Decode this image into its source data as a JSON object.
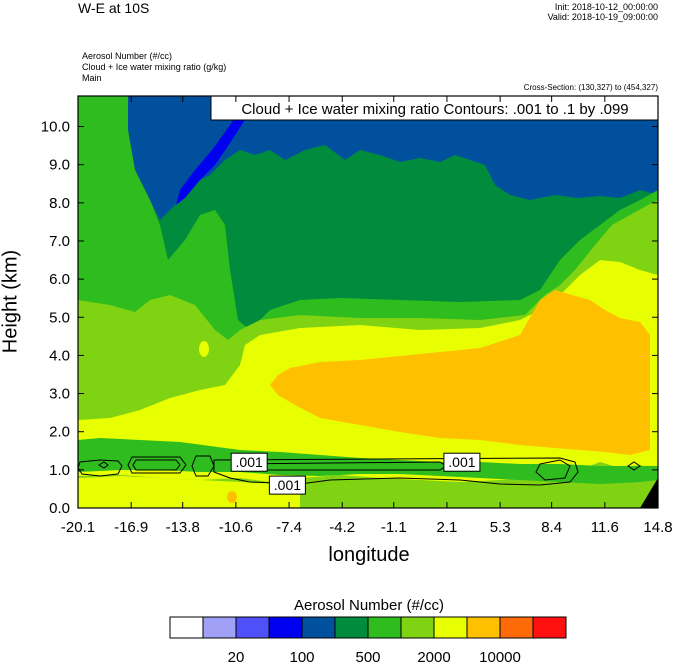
{
  "header": {
    "title": "W-E at 10S",
    "init": "Init: 2018-10-12_00:00:00",
    "valid": "Valid: 2018-10-19_09:00:00",
    "field1": "Aerosol Number   (#/cc)",
    "field2": "Cloud + Ice water mixing ratio   (g/kg)",
    "field3": "Main",
    "cross_section": "Cross-Section: (130,327) to (454,327)"
  },
  "chart_data": {
    "type": "heatmap",
    "xlabel": "longitude",
    "ylabel": "Height (km)",
    "xlim": [
      -20.1,
      14.8
    ],
    "ylim": [
      0.0,
      10.8
    ],
    "x_ticks": [
      "-20.1",
      "-16.9",
      "-13.8",
      "-10.6",
      "-7.4",
      "-4.2",
      "-1.1",
      "2.1",
      "5.3",
      "8.4",
      "11.6",
      "14.8"
    ],
    "y_ticks": [
      "0.0",
      "1.0",
      "2.0",
      "3.0",
      "4.0",
      "5.0",
      "6.0",
      "7.0",
      "8.0",
      "9.0",
      "10.0"
    ],
    "contour_box_label": "Cloud + Ice water mixing ratio Contours: .001 to .1 by .099",
    "contour_labels": [
      {
        "text": ".001",
        "x": -9.8,
        "y": 1.2
      },
      {
        "text": ".001",
        "x": -7.5,
        "y": 0.6
      },
      {
        "text": ".001",
        "x": 3.0,
        "y": 1.2
      }
    ],
    "colorbar": {
      "title": "Aerosol Number  (#/cc)",
      "colors": [
        "#ffffff",
        "#a0a0f7",
        "#5050f8",
        "#0000f0",
        "#00509e",
        "#008c3c",
        "#2ebc1e",
        "#7fd312",
        "#e7ff00",
        "#ffc000",
        "#ff6a08",
        "#ff1010"
      ],
      "labels": [
        "20",
        "100",
        "500",
        "2000",
        "10000"
      ]
    },
    "regions_description_levels": {
      "top_blue": "#00509e",
      "dark_green": "#008c3c",
      "green": "#2ebc1e",
      "light_green": "#7fd312",
      "yellow": "#e7ff00",
      "orange": "#ffc000"
    }
  }
}
